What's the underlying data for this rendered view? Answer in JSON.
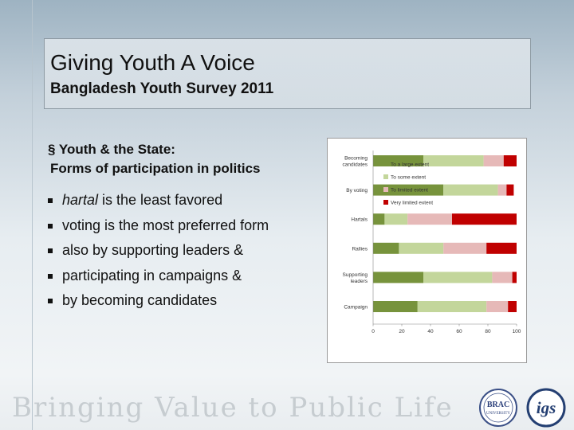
{
  "slide": {
    "title": "Giving Youth A Voice",
    "subtitle": "Bangladesh Youth Survey 2011",
    "section_line1": "§ Youth & the State:",
    "section_line2": "Forms of participation in politics",
    "bullets": [
      {
        "em": "hartal",
        "rest": " is the least favored"
      },
      {
        "em": "",
        "rest": "voting is the most preferred form"
      },
      {
        "em": "",
        "rest": "also by supporting leaders &"
      },
      {
        "em": "",
        "rest": "participating in campaigns &"
      },
      {
        "em": "",
        "rest": "by becoming candidates"
      }
    ],
    "footer": "Bringing Value to Public Life",
    "brac_logo_text": [
      "BRAC",
      "UNIVERSITY"
    ],
    "igs_logo_text": "igs"
  },
  "colors": {
    "to_large": "#77933c",
    "to_some": "#c3d69b",
    "to_limited": "#e6b9b8",
    "very_limited": "#c00000"
  },
  "chart_data": {
    "type": "bar",
    "orientation": "horizontal",
    "stacked": true,
    "categories": [
      "Becoming candidates",
      "By voting",
      "Hartals",
      "Rallies",
      "Supporting leaders",
      "Campaign"
    ],
    "category_lines": [
      [
        "Becoming",
        "candidates"
      ],
      [
        "By voting"
      ],
      [
        "Hartals"
      ],
      [
        "Rallies"
      ],
      [
        "Supporting",
        "leaders"
      ],
      [
        "Campaign"
      ]
    ],
    "series": [
      {
        "name": "To a large extent",
        "color": "#77933c",
        "values": [
          35,
          49,
          8,
          18,
          35,
          31
        ]
      },
      {
        "name": "To some extent",
        "color": "#c3d69b",
        "values": [
          42,
          38,
          16,
          31,
          48,
          48
        ]
      },
      {
        "name": "To limited extent",
        "color": "#e6b9b8",
        "values": [
          14,
          6,
          31,
          30,
          14,
          15
        ]
      },
      {
        "name": "Very limited extent",
        "color": "#c00000",
        "values": [
          9,
          5,
          45,
          21,
          3,
          6
        ]
      }
    ],
    "xlim": [
      0,
      100
    ],
    "x_ticks": [
      "0",
      "20",
      "40",
      "60",
      "80",
      "100"
    ],
    "legend_position": "top-right, inside plot",
    "grid": false
  }
}
